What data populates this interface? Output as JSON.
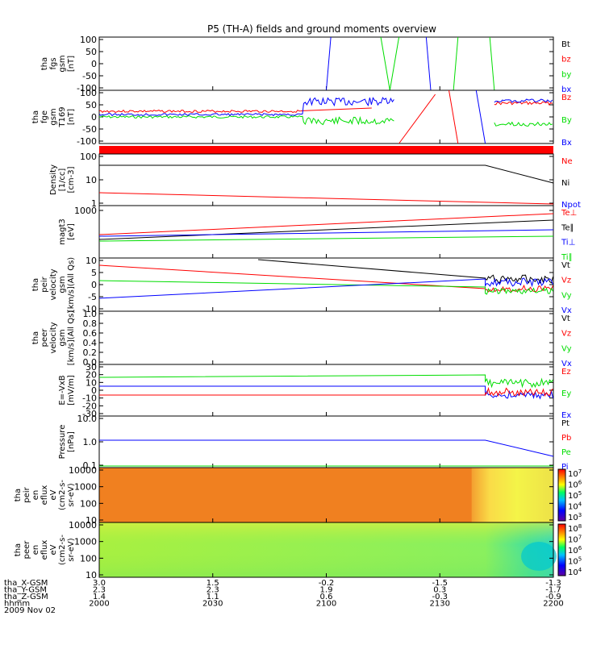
{
  "title": "P5 (TH-A) fields and ground moments overview",
  "colors": {
    "black": "#000000",
    "red": "#ff0000",
    "green": "#00dd00",
    "blue": "#0000ff"
  },
  "panels": [
    {
      "id": "fgs",
      "ylabel": [
        "tha",
        "fgs",
        "gsm",
        "[nT]"
      ],
      "ticks": [
        "100",
        "50",
        "0",
        "-50",
        "-100"
      ],
      "legend": [
        {
          "text": "Bt",
          "color": "black"
        },
        {
          "text": "bz",
          "color": "red"
        },
        {
          "text": "by",
          "color": "green"
        },
        {
          "text": "bx",
          "color": "blue"
        }
      ]
    },
    {
      "id": "fge",
      "ylabel": [
        "tha",
        "fge",
        "gsm",
        "T169",
        "[nT]"
      ],
      "ticks": [
        "100",
        "50",
        "0",
        "-50",
        "-100"
      ],
      "legend": [
        {
          "text": "Bz",
          "color": "red"
        },
        {
          "text": "By",
          "color": "green"
        },
        {
          "text": "Bx",
          "color": "blue"
        }
      ]
    },
    {
      "id": "bar",
      "ylabel": [],
      "ticks": [],
      "legend": []
    },
    {
      "id": "density",
      "ylabel": [
        "Density",
        "[1/cc]",
        "[cm-3]"
      ],
      "ticks": [
        "100",
        "10",
        "1"
      ],
      "legend": [
        {
          "text": "Ne",
          "color": "red"
        },
        {
          "text": "Ni",
          "color": "black"
        },
        {
          "text": "Npot",
          "color": "blue"
        }
      ]
    },
    {
      "id": "temp",
      "ylabel": [
        "magt3",
        "[eV]"
      ],
      "ticks": [
        "1000"
      ],
      "legend": [
        {
          "text": "Te⊥",
          "color": "red"
        },
        {
          "text": "Te∥",
          "color": "black"
        },
        {
          "text": "Ti⊥",
          "color": "blue"
        },
        {
          "text": "Ti∥",
          "color": "green"
        }
      ]
    },
    {
      "id": "peirvel",
      "ylabel": [
        "tha",
        "peir",
        "velocity",
        "gsm",
        "[km/s](All Qs)"
      ],
      "ticks": [
        "10",
        "5",
        "0",
        "-5",
        "-10"
      ],
      "legend": [
        {
          "text": "Vt",
          "color": "black"
        },
        {
          "text": "Vz",
          "color": "red"
        },
        {
          "text": "Vy",
          "color": "green"
        },
        {
          "text": "Vx",
          "color": "blue"
        }
      ]
    },
    {
      "id": "peervel",
      "ylabel": [
        "tha",
        "peer",
        "velocity",
        "gsm",
        "[km/s](All Qs)"
      ],
      "ticks": [
        "1.0",
        "0.8",
        "0.6",
        "0.4",
        "0.2",
        "0.0"
      ],
      "legend": [
        {
          "text": "Vt",
          "color": "black"
        },
        {
          "text": "Vz",
          "color": "red"
        },
        {
          "text": "Vy",
          "color": "green"
        },
        {
          "text": "Vx",
          "color": "blue"
        }
      ]
    },
    {
      "id": "efield",
      "ylabel": [
        "E=-VxB",
        "[mV/m]"
      ],
      "ticks": [
        "30",
        "20",
        "10",
        "0",
        "-10",
        "-20",
        "-30"
      ],
      "legend": [
        {
          "text": "Ez",
          "color": "red"
        },
        {
          "text": "Ey",
          "color": "green"
        },
        {
          "text": "Ex",
          "color": "blue"
        }
      ]
    },
    {
      "id": "pressure",
      "ylabel": [
        "Pressure",
        "[nPa]"
      ],
      "ticks": [
        "10.0",
        "1.0",
        "0.1"
      ],
      "legend": [
        {
          "text": "Pt",
          "color": "black"
        },
        {
          "text": "Pb",
          "color": "red"
        },
        {
          "text": "Pe",
          "color": "green"
        },
        {
          "text": "Pi",
          "color": "blue"
        }
      ]
    },
    {
      "id": "peirspec",
      "ylabel": [
        "tha",
        "peir",
        "en",
        "eflux",
        "eV",
        "(cm2-s-",
        "sr-eV)"
      ],
      "ticks": [
        "10000",
        "1000",
        "100",
        "10"
      ],
      "legend": []
    },
    {
      "id": "peerspec",
      "ylabel": [
        "tha",
        "peer",
        "en",
        "eflux",
        "eV",
        "(cm2-s-",
        "sr-eV)"
      ],
      "ticks": [
        "10000",
        "1000",
        "100",
        "10"
      ],
      "legend": []
    }
  ],
  "colorbars": [
    {
      "labels": [
        "10",
        "10",
        "10",
        "10",
        "10"
      ],
      "exps": [
        "7",
        "6",
        "5",
        "4",
        "3"
      ]
    },
    {
      "labels": [
        "10",
        "10",
        "10",
        "10",
        "10",
        "10"
      ],
      "exps": [
        "8",
        "7",
        "6",
        "5",
        "4"
      ]
    }
  ],
  "axis_rows": [
    {
      "label": "tha_X-GSM",
      "values": [
        "3.0",
        "1.5",
        "-0.2",
        "-1.5",
        "-1.3"
      ]
    },
    {
      "label": "tha_Y-GSM",
      "values": [
        "2.3",
        "2.3",
        "1.9",
        "0.3",
        "-1.7"
      ]
    },
    {
      "label": "tha_Z-GSM",
      "values": [
        "1.4",
        "1.1",
        "0.6",
        "-0.3",
        "-0.9"
      ]
    },
    {
      "label": "hhmm",
      "values": [
        "2000",
        "2030",
        "2100",
        "2130",
        "2200"
      ]
    }
  ],
  "date": "2009 Nov 02",
  "chart_data": {
    "type": "line",
    "title": "P5 (TH-A) fields and ground moments overview",
    "x_ticks_hhmm": [
      "2000",
      "2030",
      "2100",
      "2130",
      "2200"
    ],
    "series": [
      {
        "name": "Ni",
        "panel": "density",
        "x": [
          "2000",
          "2100",
          "2140",
          "2200"
        ],
        "values": [
          40,
          38,
          38,
          2
        ]
      },
      {
        "name": "Ne",
        "panel": "density",
        "x": [
          "2000",
          "2100",
          "2140",
          "2200"
        ],
        "values": [
          0.7,
          0.4,
          0.25,
          0.12
        ]
      },
      {
        "name": "Vz",
        "panel": "peirvel",
        "x": [
          "2000",
          "2100",
          "2145",
          "2200"
        ],
        "values": [
          8,
          2,
          -1,
          -1
        ]
      },
      {
        "name": "Vy",
        "panel": "peirvel",
        "x": [
          "2000",
          "2100",
          "2145",
          "2200"
        ],
        "values": [
          2,
          1,
          -1,
          0
        ]
      },
      {
        "name": "Vx",
        "panel": "peirvel",
        "x": [
          "2000",
          "2100",
          "2145",
          "2200"
        ],
        "values": [
          -5,
          0,
          3,
          2
        ]
      },
      {
        "name": "Ey",
        "panel": "efield",
        "x": [
          "2000",
          "2140",
          "2200"
        ],
        "values": [
          7,
          8,
          3
        ]
      },
      {
        "name": "Ex",
        "panel": "efield",
        "x": [
          "2000",
          "2140",
          "2200"
        ],
        "values": [
          0,
          0,
          -8
        ]
      },
      {
        "name": "Ez",
        "panel": "efield",
        "x": [
          "2000",
          "2140",
          "2200"
        ],
        "values": [
          -8,
          -8,
          -5
        ]
      },
      {
        "name": "Pi",
        "panel": "pressure",
        "x": [
          "2000",
          "2140",
          "2200"
        ],
        "values": [
          1.2,
          1.2,
          0.1
        ]
      }
    ]
  }
}
